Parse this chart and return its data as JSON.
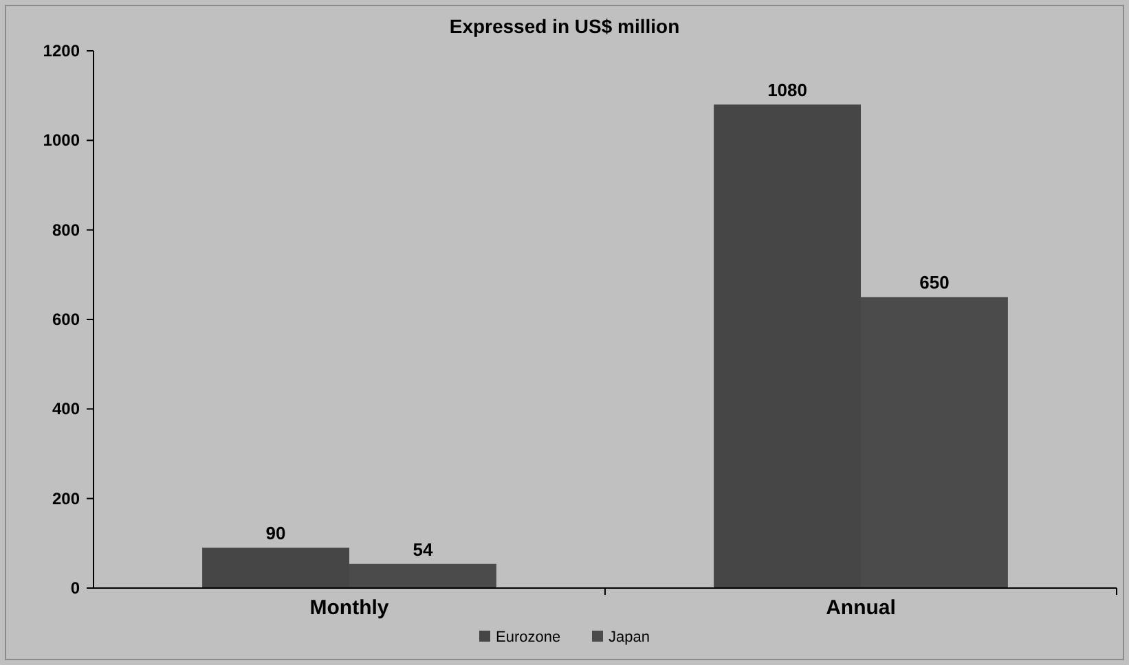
{
  "chart_data": {
    "type": "bar",
    "title": "Expressed in US$ million",
    "categories": [
      "Monthly",
      "Annual"
    ],
    "series": [
      {
        "name": "Eurozone",
        "color": "#464646",
        "values": [
          90,
          1080
        ]
      },
      {
        "name": "Japan",
        "color": "#4b4b4b",
        "values": [
          54,
          650
        ]
      }
    ],
    "ylim": [
      0,
      1200
    ],
    "yticks": [
      0,
      200,
      400,
      600,
      800,
      1000,
      1200
    ],
    "grid": false,
    "legend": "bottom",
    "data_labels": true
  }
}
